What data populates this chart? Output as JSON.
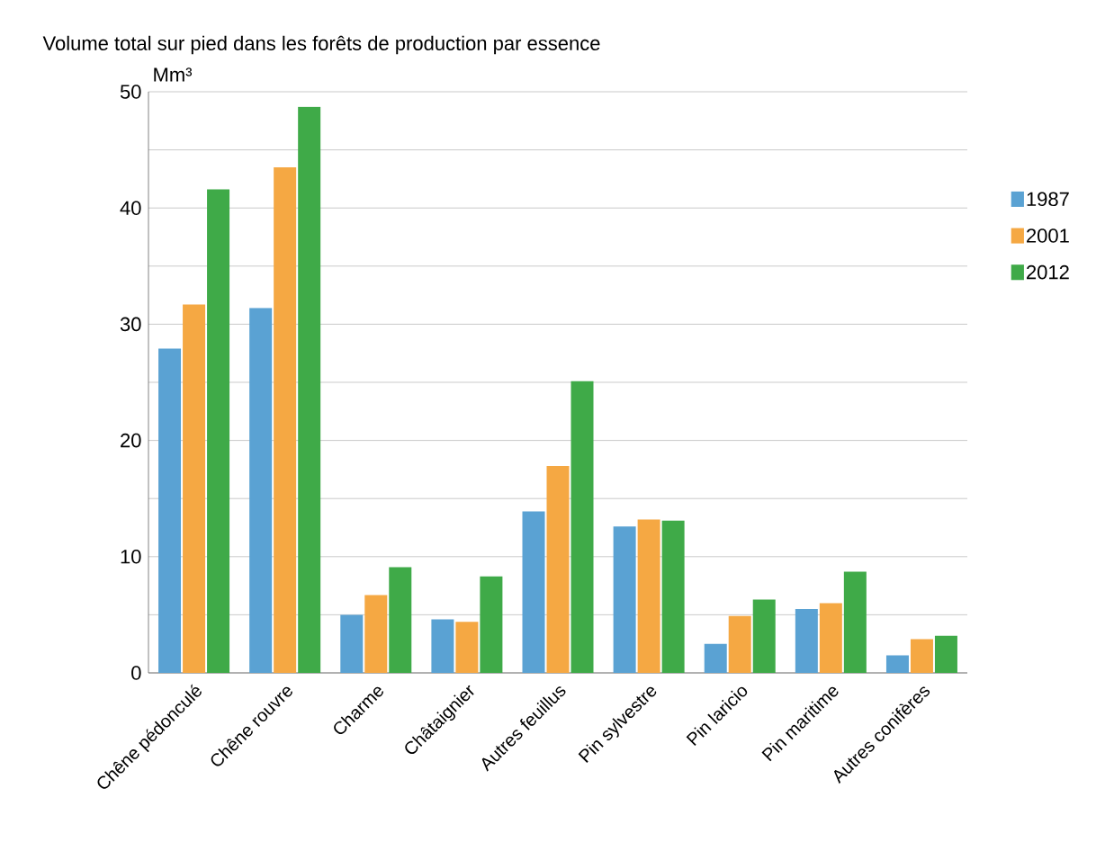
{
  "chart_data": {
    "type": "bar",
    "title": "Volume total sur pied dans les forêts de production par essence",
    "ylabel": "Mm³",
    "categories": [
      "Chêne pédonculé",
      "Chêne rouvre",
      "Charme",
      "Châtaignier",
      "Autres feuillus",
      "Pin sylvestre",
      "Pin laricio",
      "Pin maritime",
      "Autres conifères"
    ],
    "series": [
      {
        "name": "1987",
        "color": "#5aa2d3",
        "values": [
          27.9,
          31.4,
          5.0,
          4.6,
          13.9,
          12.6,
          2.5,
          5.5,
          1.5
        ]
      },
      {
        "name": "2001",
        "color": "#f5a843",
        "values": [
          31.7,
          43.5,
          6.7,
          4.4,
          17.8,
          13.2,
          4.9,
          6.0,
          2.9
        ]
      },
      {
        "name": "2012",
        "color": "#3faa48",
        "values": [
          41.6,
          48.7,
          9.1,
          8.3,
          25.1,
          13.1,
          6.3,
          8.7,
          3.2
        ]
      }
    ],
    "ylim": [
      0,
      50
    ],
    "yticks": [
      0,
      {
        "value": 5,
        "label": null
      },
      10,
      {
        "value": 15,
        "label": null
      },
      20,
      {
        "value": 25,
        "label": null
      },
      30,
      {
        "value": 35,
        "label": null
      },
      40,
      {
        "value": 45,
        "label": null
      },
      50
    ],
    "grid": "y",
    "legend": "right"
  }
}
